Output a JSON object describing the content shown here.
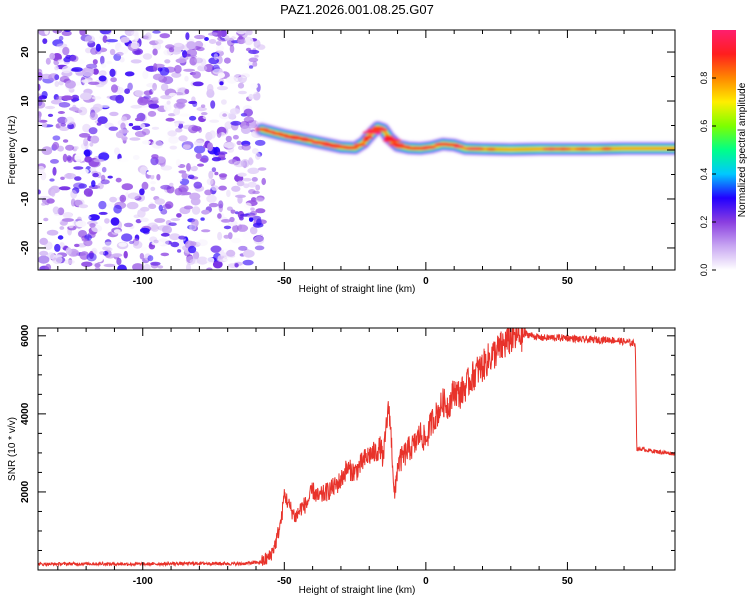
{
  "title": "PAZ1.2026.001.08.25.G07",
  "chart_data": [
    {
      "type": "heatmap",
      "title": "PAZ1.2026.001.08.25.G07",
      "xlabel": "Height of straight line (km)",
      "ylabel": "Frequency (Hz)",
      "xlim": [
        -137,
        88
      ],
      "ylim": [
        -24.5,
        24.5
      ],
      "xticks": [
        -100,
        -50,
        0,
        50
      ],
      "xtick_labels": [
        "-100",
        "-50",
        "0",
        "50"
      ],
      "yticks": [
        -20,
        -10,
        0,
        10,
        20
      ],
      "ytick_labels": [
        "-20",
        "-10",
        "0",
        "10",
        "20"
      ],
      "noise_region_x": [
        -137,
        -58
      ],
      "signal_ridge": {
        "x": [
          -58,
          -54,
          -50,
          -45,
          -40,
          -35,
          -30,
          -25,
          -22,
          -19,
          -17,
          -15,
          -13,
          -10,
          -6,
          -2,
          2,
          6,
          10,
          14,
          20,
          30,
          40,
          50,
          60,
          70,
          80,
          88
        ],
        "y": [
          4.2,
          3.6,
          3,
          2.4,
          1.8,
          1.2,
          0.6,
          0.4,
          1.5,
          3.5,
          4.6,
          4.2,
          2.5,
          0.9,
          0.4,
          0.3,
          0.6,
          1.2,
          1,
          0.3,
          0.2,
          0.1,
          0.2,
          0.2,
          0.2,
          0.3,
          0.3,
          0.3
        ]
      },
      "colorbar": {
        "label": "Normalized spectral amplitude",
        "range": [
          0,
          1
        ],
        "ticks": [
          0.0,
          0.2,
          0.4,
          0.6,
          0.8
        ],
        "tick_labels": [
          "0.0",
          "0.2",
          "0.4",
          "0.6",
          "0.8"
        ],
        "colors": [
          "#ffffff",
          "#c8a6f2",
          "#8a3ee0",
          "#2200ff",
          "#00c8ff",
          "#00ff88",
          "#7dff00",
          "#ffee00",
          "#ff8800",
          "#ff1e1e",
          "#ff1e6e"
        ]
      }
    },
    {
      "type": "line",
      "xlabel": "Height of straight line (km)",
      "ylabel": "SNR (10 * v/v)",
      "xlim": [
        -137,
        88
      ],
      "ylim": [
        0,
        6200
      ],
      "xticks": [
        -100,
        -50,
        0,
        50
      ],
      "xtick_labels": [
        "-100",
        "-50",
        "0",
        "50"
      ],
      "yticks": [
        2000,
        4000,
        6000
      ],
      "ytick_labels": [
        "2000",
        "4000",
        "6000"
      ],
      "color": "#e8322a",
      "series": [
        {
          "name": "SNR",
          "x": [
            -137,
            -120,
            -100,
            -80,
            -65,
            -58,
            -55,
            -53,
            -51,
            -50,
            -48,
            -46,
            -44,
            -42,
            -40,
            -38,
            -35,
            -32,
            -30,
            -28,
            -25,
            -22,
            -20,
            -18,
            -16,
            -15,
            -14,
            -13,
            -12,
            -11,
            -10,
            -8,
            -6,
            -4,
            -2,
            0,
            2,
            4,
            6,
            8,
            10,
            12,
            15,
            18,
            20,
            22,
            25,
            28,
            30,
            33,
            35,
            38,
            40,
            45,
            50,
            55,
            60,
            65,
            70,
            74,
            74.5,
            76,
            80,
            85,
            88
          ],
          "y": [
            150,
            160,
            150,
            170,
            160,
            200,
            350,
            700,
            1300,
            1950,
            1600,
            1350,
            1600,
            1700,
            2050,
            1850,
            2000,
            2150,
            2300,
            2600,
            2500,
            2800,
            2950,
            3000,
            3150,
            2800,
            3700,
            4200,
            3100,
            1800,
            2700,
            2900,
            3100,
            3200,
            3500,
            3300,
            3800,
            4000,
            4300,
            4200,
            4600,
            4500,
            4800,
            5100,
            5200,
            5400,
            5600,
            5800,
            5950,
            6000,
            6050,
            6000,
            5950,
            5950,
            5950,
            5900,
            5900,
            5900,
            5850,
            5800,
            3100,
            3100,
            3050,
            3000,
            2980
          ]
        }
      ]
    }
  ]
}
